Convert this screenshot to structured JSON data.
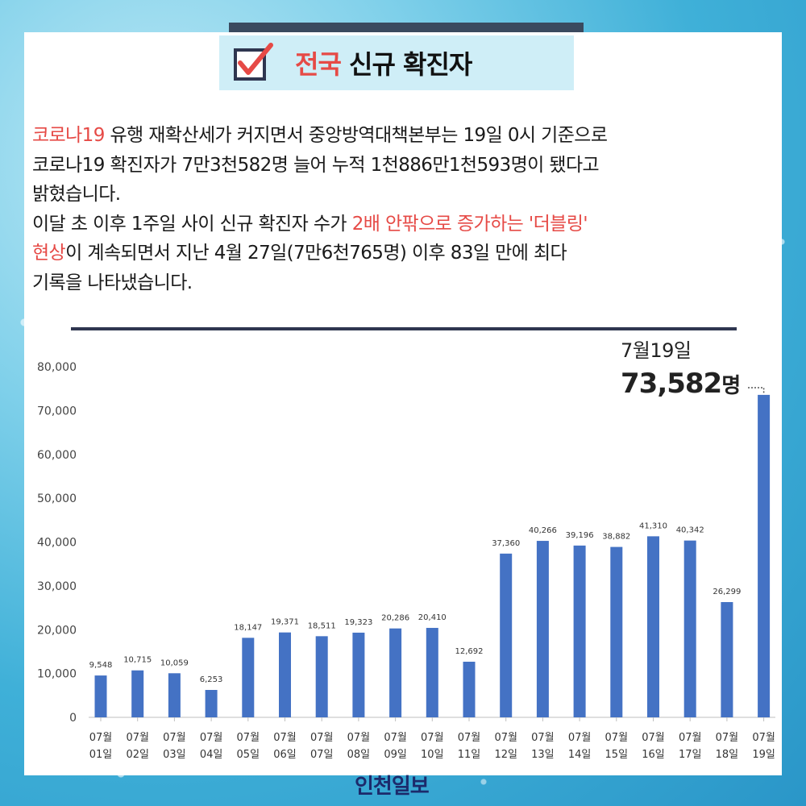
{
  "header": {
    "title_red": "전국",
    "title_rest": " 신규 확진자"
  },
  "paragraph": {
    "l1_red": "코로나19",
    "l1": " 유행 재확산세가 커지면서 중앙방역대책본부는 19일 0시 기준으로",
    "l2": "코로나19 확진자가 7만3천582명 늘어 누적 1천886만1천593명이 됐다고",
    "l3": "밝혔습니다.",
    "l4a": "이달 초 이후 1주일 사이 신규 확진자 수가 ",
    "l4_red": "2배 안팎으로 증가하는 '더블링'",
    "l5_red": "현상",
    "l5": "이 계속되면서 지난 4월 27일(7만6천765명) 이후 83일 만에 최다",
    "l6": "기록을 나타냈습니다."
  },
  "highlight": {
    "date": "7월19일",
    "value": "73,582",
    "unit": "명"
  },
  "logo": "인천일보",
  "colors": {
    "bar": "#4472c4",
    "accent_red": "#e64a46",
    "divider": "#2f3650"
  },
  "chart_data": {
    "type": "bar",
    "title": "",
    "xlabel": "",
    "ylabel": "",
    "ylim": [
      0,
      80000
    ],
    "yticks": [
      "0",
      "10,000",
      "20,000",
      "30,000",
      "40,000",
      "50,000",
      "60,000",
      "70,000",
      "80,000"
    ],
    "categories": [
      [
        "07월",
        "01일"
      ],
      [
        "07월",
        "02일"
      ],
      [
        "07월",
        "03일"
      ],
      [
        "07월",
        "04일"
      ],
      [
        "07월",
        "05일"
      ],
      [
        "07월",
        "06일"
      ],
      [
        "07월",
        "07일"
      ],
      [
        "07월",
        "08일"
      ],
      [
        "07월",
        "09일"
      ],
      [
        "07월",
        "10일"
      ],
      [
        "07월",
        "11일"
      ],
      [
        "07월",
        "12일"
      ],
      [
        "07월",
        "13일"
      ],
      [
        "07월",
        "14일"
      ],
      [
        "07월",
        "15일"
      ],
      [
        "07월",
        "16일"
      ],
      [
        "07월",
        "17일"
      ],
      [
        "07월",
        "18일"
      ],
      [
        "07월",
        "19일"
      ]
    ],
    "values": [
      9548,
      10715,
      10059,
      6253,
      18147,
      19371,
      18511,
      19323,
      20286,
      20410,
      12692,
      37360,
      40266,
      39196,
      38882,
      41310,
      40342,
      26299,
      73582
    ],
    "labels": [
      "9,548",
      "10,715",
      "10,059",
      "6,253",
      "18,147",
      "19,371",
      "18,511",
      "19,323",
      "20,286",
      "20,410",
      "12,692",
      "37,360",
      "40,266",
      "39,196",
      "38,882",
      "41,310",
      "40,342",
      "26,299",
      ""
    ],
    "grid": false,
    "legend": "none"
  }
}
